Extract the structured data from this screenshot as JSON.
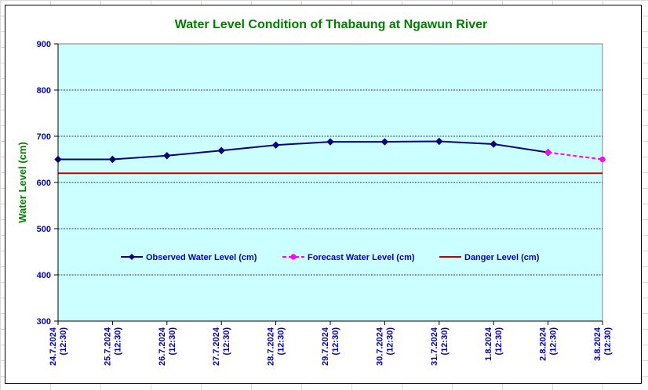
{
  "chart_data": {
    "type": "line",
    "title": "Water Level Condition of Thabaung at Ngawun River",
    "ylabel": "Water Level (cm)",
    "xlabel": "",
    "ylim": [
      300,
      900
    ],
    "yticks": [
      300,
      400,
      500,
      600,
      700,
      800,
      900
    ],
    "categories": [
      [
        "24.7.2024",
        "(12:30)"
      ],
      [
        "25.7.2024",
        "(12:30)"
      ],
      [
        "26.7.2024",
        "(12:30)"
      ],
      [
        "27.7.2024",
        "(12:30)"
      ],
      [
        "28.7.2024",
        "(12:30)"
      ],
      [
        "29.7.2024",
        "(12:30)"
      ],
      [
        "30.7.2024",
        "(12:30)"
      ],
      [
        "31.7.2024",
        "(12:30)"
      ],
      [
        "1.8.2024",
        "(12:30)"
      ],
      [
        "2.8.2024",
        "(12:30)"
      ],
      [
        "3.8.2024",
        "(12:30)"
      ]
    ],
    "series": [
      {
        "name": "Observed Water Level (cm)",
        "color": "#000080",
        "style": "solid",
        "marker": "diamond",
        "values": [
          650,
          650,
          658,
          669,
          681,
          688,
          688,
          689,
          683,
          665,
          null
        ]
      },
      {
        "name": "Forecast Water Level (cm)",
        "color": "#ff00ff",
        "style": "dashed",
        "marker": "circle",
        "values": [
          null,
          null,
          null,
          null,
          null,
          null,
          null,
          null,
          null,
          665,
          650
        ]
      },
      {
        "name": "Danger Level (cm)",
        "color": "#cc0000",
        "style": "solid",
        "marker": "none",
        "values": [
          620,
          620,
          620,
          620,
          620,
          620,
          620,
          620,
          620,
          620,
          620
        ]
      }
    ],
    "grid": true,
    "plot_background": "#ccffff",
    "legend_position": "inside-middle"
  }
}
